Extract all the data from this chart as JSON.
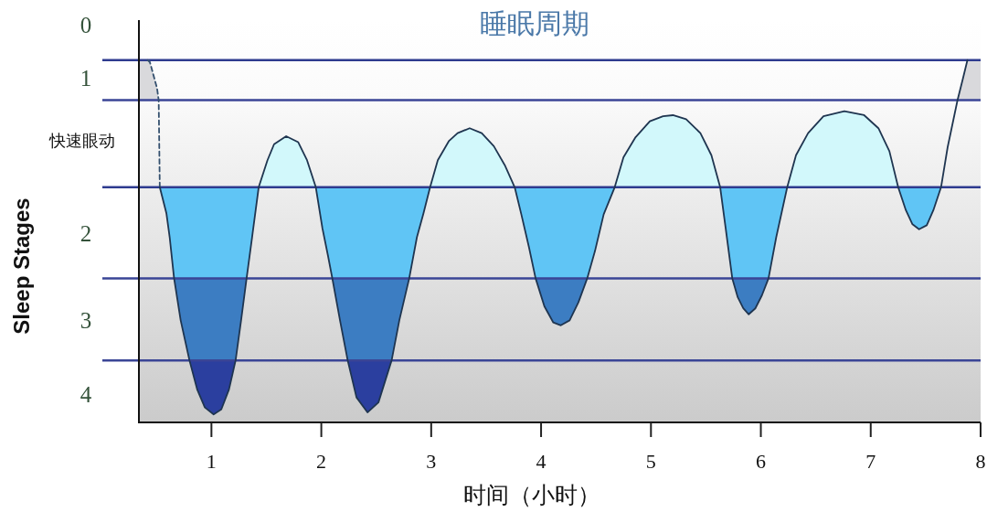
{
  "chart_data": {
    "type": "area",
    "title": "睡眠周期",
    "xlabel": "时间（小时）",
    "ylabel": "Sleep Stages",
    "xlim": [
      0.34,
      8
    ],
    "xticks": [
      1,
      2,
      3,
      4,
      5,
      6,
      7,
      8
    ],
    "ylim": [
      4.12,
      0.1
    ],
    "yticks": [
      {
        "value": 0.15,
        "label": "0"
      },
      {
        "value": 0.68,
        "label": "1"
      },
      {
        "value": 1.31,
        "label": "快速眼动"
      },
      {
        "value": 2.23,
        "label": "2"
      },
      {
        "value": 3.1,
        "label": "3"
      },
      {
        "value": 3.84,
        "label": "4"
      }
    ],
    "series": [
      {
        "type": "line",
        "color": "#34506e",
        "line_style": "dashed",
        "x": [
          0.42,
          0.44,
          0.475,
          0.505,
          0.52,
          0.53
        ],
        "values": [
          0.5,
          0.52,
          0.66,
          0.78,
          0.9,
          1.77
        ]
      },
      {
        "type": "line",
        "color": "#1f3550",
        "x": [
          0.53,
          0.59,
          0.62,
          0.66,
          0.72,
          0.8,
          0.87,
          0.94,
          1.02,
          1.09,
          1.16,
          1.22,
          1.27,
          1.32,
          1.37,
          1.43,
          1.51,
          1.57,
          1.68,
          1.79,
          1.87,
          1.95,
          2.01,
          2.06,
          2.1,
          2.17,
          2.24,
          2.32,
          2.42,
          2.52,
          2.64,
          2.71,
          2.8,
          2.87,
          2.93,
          2.99,
          3.06,
          3.16,
          3.24,
          3.35,
          3.46,
          3.57,
          3.67,
          3.76,
          3.82,
          3.89,
          3.95,
          4.03,
          4.11,
          4.18,
          4.26,
          4.34,
          4.42,
          4.49,
          4.57,
          4.67,
          4.75,
          4.86,
          4.99,
          5.11,
          5.2,
          5.32,
          5.45,
          5.55,
          5.63,
          5.68,
          5.74,
          5.79,
          5.84,
          5.89,
          5.95,
          6.01,
          6.07,
          6.14,
          6.24,
          6.32,
          6.43,
          6.57,
          6.76,
          6.94,
          7.07,
          7.17,
          7.25,
          7.32,
          7.38,
          7.44,
          7.51,
          7.57,
          7.64,
          7.7,
          7.79,
          7.84,
          7.88
        ],
        "values": [
          1.77,
          2.03,
          2.27,
          2.68,
          3.1,
          3.5,
          3.79,
          3.97,
          4.04,
          3.99,
          3.79,
          3.5,
          3.1,
          2.68,
          2.27,
          1.77,
          1.5,
          1.34,
          1.26,
          1.32,
          1.5,
          1.77,
          2.18,
          2.45,
          2.68,
          3.1,
          3.5,
          3.87,
          4.02,
          3.92,
          3.5,
          3.1,
          2.68,
          2.27,
          2.03,
          1.77,
          1.5,
          1.31,
          1.23,
          1.18,
          1.23,
          1.36,
          1.55,
          1.77,
          2.04,
          2.37,
          2.68,
          2.96,
          3.12,
          3.15,
          3.1,
          2.92,
          2.68,
          2.41,
          2.04,
          1.77,
          1.47,
          1.27,
          1.11,
          1.06,
          1.05,
          1.09,
          1.23,
          1.45,
          1.77,
          2.18,
          2.68,
          2.87,
          2.98,
          3.04,
          2.98,
          2.85,
          2.68,
          2.27,
          1.77,
          1.45,
          1.23,
          1.06,
          1.01,
          1.05,
          1.18,
          1.41,
          1.77,
          2.0,
          2.14,
          2.19,
          2.15,
          2.0,
          1.77,
          1.37,
          0.9,
          0.68,
          0.5
        ]
      },
      {
        "color": "#d9d9dc",
        "x": [
          0.34,
          0.34,
          0.42,
          0.44,
          0.475,
          0.505,
          0.52,
          7.79,
          7.84,
          7.88,
          8.0,
          8.0
        ],
        "values": [
          0.9,
          0.5,
          0.5,
          0.52,
          0.66,
          0.78,
          0.9,
          0.9,
          0.68,
          0.5,
          0.5,
          0.9
        ]
      },
      {
        "color": "#d2f8fb",
        "x": [
          1.43,
          1.51,
          1.57,
          1.68,
          1.79,
          1.87,
          1.95,
          2.99,
          3.06,
          3.16,
          3.24,
          3.35,
          3.46,
          3.57,
          3.67,
          3.76,
          4.67,
          4.75,
          4.86,
          4.99,
          5.11,
          5.2,
          5.32,
          5.45,
          5.55,
          5.63,
          6.24,
          6.32,
          6.43,
          6.57,
          6.76,
          6.94,
          7.07,
          7.17,
          7.25
        ],
        "values": [
          1.77,
          1.5,
          1.34,
          1.26,
          1.32,
          1.5,
          1.77,
          1.77,
          1.5,
          1.31,
          1.23,
          1.18,
          1.23,
          1.36,
          1.55,
          1.77,
          1.77,
          1.47,
          1.27,
          1.11,
          1.06,
          1.05,
          1.09,
          1.23,
          1.45,
          1.77,
          1.77,
          1.45,
          1.23,
          1.06,
          1.01,
          1.05,
          1.18,
          1.41,
          1.77
        ]
      },
      {
        "color": "#60c5f5",
        "x": [
          0.53,
          0.59,
          0.62,
          0.66,
          1.32,
          1.37,
          1.43,
          1.95,
          2.01,
          2.06,
          2.1,
          2.8,
          2.87,
          2.93,
          2.99,
          3.76,
          3.82,
          3.89,
          3.95,
          4.42,
          4.49,
          4.57,
          4.67,
          5.63,
          5.68,
          5.74,
          6.07,
          6.14,
          6.24,
          7.25,
          7.32,
          7.38,
          7.44,
          7.51,
          7.57,
          7.64
        ],
        "values": [
          1.77,
          2.03,
          2.27,
          2.68,
          2.68,
          2.27,
          1.77,
          1.77,
          2.18,
          2.45,
          2.68,
          2.68,
          2.27,
          2.03,
          1.77,
          1.77,
          2.04,
          2.37,
          2.68,
          2.68,
          2.41,
          2.04,
          1.77,
          1.77,
          2.18,
          2.68,
          2.68,
          2.27,
          1.77,
          1.77,
          2.0,
          2.14,
          2.19,
          2.15,
          2.0,
          1.77
        ]
      },
      {
        "color": "#3c7dc2",
        "x": [
          0.66,
          0.72,
          0.8,
          1.22,
          1.27,
          1.32,
          2.1,
          2.17,
          2.24,
          2.64,
          2.71,
          2.8,
          3.95,
          4.03,
          4.11,
          4.18,
          4.26,
          4.34,
          4.42,
          5.74,
          5.79,
          5.84,
          5.89,
          5.95,
          6.01,
          6.07
        ],
        "values": [
          2.68,
          3.1,
          3.5,
          3.5,
          3.1,
          2.68,
          2.68,
          3.1,
          3.5,
          3.5,
          3.1,
          2.68,
          2.68,
          2.96,
          3.12,
          3.15,
          3.1,
          2.92,
          2.68,
          2.68,
          2.87,
          2.98,
          3.04,
          2.98,
          2.85,
          2.68
        ]
      },
      {
        "color": "#2b3f9f",
        "x": [
          0.8,
          0.87,
          0.94,
          1.02,
          1.09,
          1.16,
          1.22,
          2.24,
          2.32,
          2.42,
          2.52,
          2.64
        ],
        "values": [
          3.5,
          3.79,
          3.97,
          4.04,
          3.99,
          3.79,
          3.5,
          3.5,
          3.87,
          4.02,
          3.92,
          3.5
        ]
      }
    ],
    "ref_lines": [
      {
        "axis": "y",
        "value": 0.5,
        "color": "#2e3b8f"
      },
      {
        "axis": "y",
        "value": 0.9,
        "color": "#3a4596"
      },
      {
        "axis": "y",
        "value": 1.77,
        "color": "#2e3b8f"
      },
      {
        "axis": "y",
        "value": 2.68,
        "color": "#3a4596"
      },
      {
        "axis": "y",
        "value": 3.5,
        "color": "#3a4596"
      }
    ]
  }
}
